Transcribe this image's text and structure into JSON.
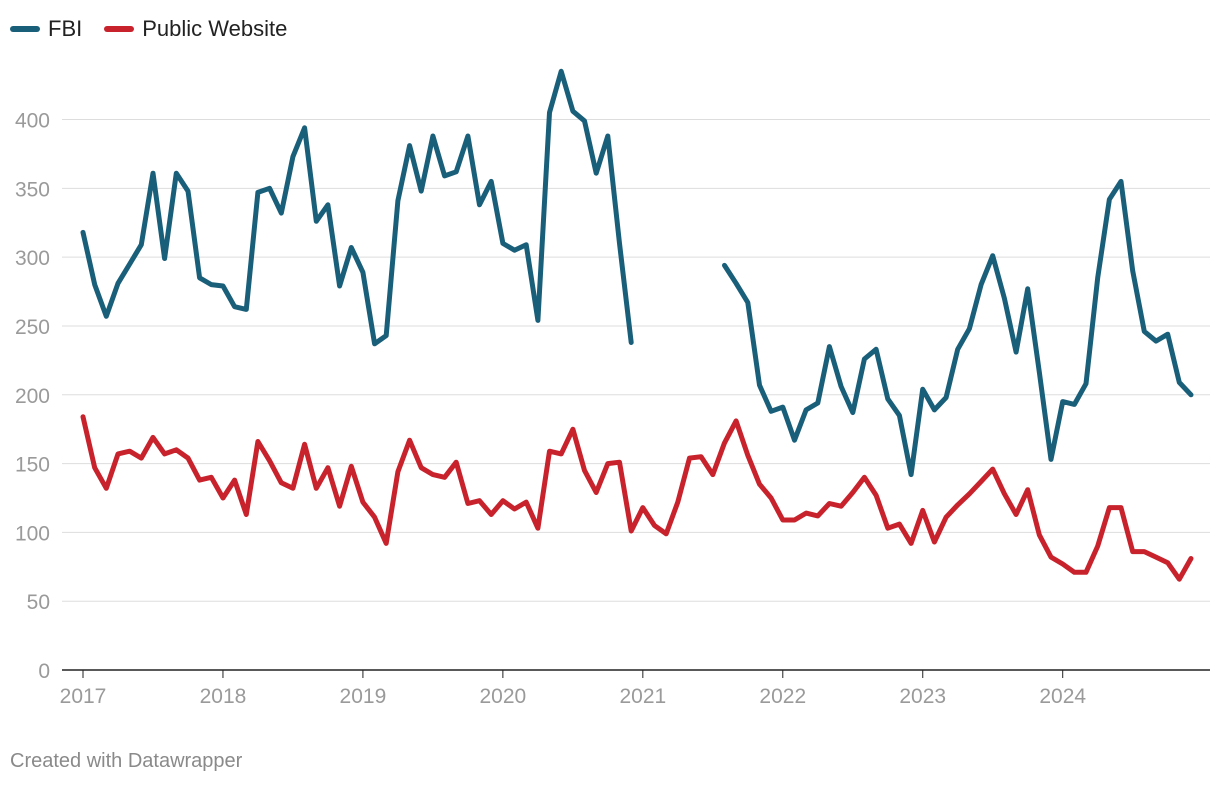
{
  "chart_data": {
    "type": "line",
    "title": "",
    "xlabel": "",
    "ylabel": "",
    "ylim": [
      0,
      440
    ],
    "yticks": [
      0,
      50,
      100,
      150,
      200,
      250,
      300,
      350,
      400
    ],
    "ytick_labels": [
      "0",
      "50",
      "100",
      "150",
      "200",
      "250",
      "300",
      "350",
      "400"
    ],
    "x_start_year": 2017,
    "x_end_year": 2025,
    "xtick_years": [
      2017,
      2018,
      2019,
      2020,
      2021,
      2022,
      2023,
      2024
    ],
    "xtick_labels": [
      "2017",
      "2018",
      "2019",
      "2020",
      "2021",
      "2022",
      "2023",
      "2024"
    ],
    "grid": true,
    "legend_position": "top-left",
    "series": [
      {
        "name": "FBI",
        "color": "#1a5f7a",
        "values": [
          318,
          280,
          257,
          281,
          295,
          309,
          361,
          299,
          361,
          348,
          285,
          280,
          279,
          264,
          262,
          347,
          350,
          332,
          373,
          394,
          326,
          338,
          279,
          307,
          289,
          237,
          243,
          341,
          381,
          348,
          388,
          359,
          362,
          388,
          338,
          355,
          310,
          305,
          309,
          254,
          405,
          435,
          406,
          399,
          361,
          388,
          310,
          238,
          null,
          null,
          null,
          null,
          null,
          null,
          null,
          294,
          281,
          267,
          207,
          188,
          191,
          167,
          189,
          194,
          235,
          206,
          187,
          226,
          233,
          197,
          185,
          142,
          204,
          189,
          198,
          233,
          248,
          280,
          301,
          270,
          231,
          277,
          216,
          153,
          195,
          193,
          208,
          285,
          342,
          355,
          290,
          246,
          239,
          244,
          209,
          200
        ]
      },
      {
        "name": "Public Website",
        "color": "#c8232c",
        "values": [
          184,
          147,
          132,
          157,
          159,
          154,
          169,
          157,
          160,
          154,
          138,
          140,
          125,
          138,
          113,
          166,
          152,
          136,
          132,
          164,
          132,
          147,
          119,
          148,
          122,
          111,
          92,
          144,
          167,
          147,
          142,
          140,
          151,
          121,
          123,
          113,
          123,
          117,
          122,
          103,
          159,
          157,
          175,
          145,
          129,
          150,
          151,
          101,
          118,
          105,
          99,
          122,
          154,
          155,
          142,
          165,
          181,
          156,
          135,
          125,
          109,
          109,
          114,
          112,
          121,
          119,
          129,
          140,
          127,
          103,
          106,
          92,
          116,
          93,
          111,
          120,
          128,
          137,
          146,
          128,
          113,
          131,
          98,
          82,
          77,
          71,
          71,
          90,
          118,
          118,
          86,
          86,
          82,
          78,
          66,
          81
        ]
      }
    ]
  },
  "footer": {
    "credit": "Created with Datawrapper"
  }
}
